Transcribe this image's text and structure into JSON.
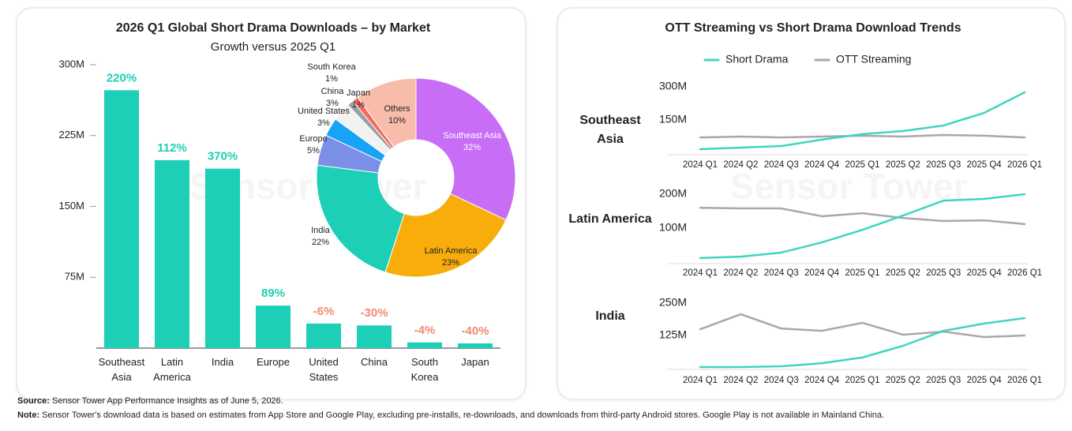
{
  "chart_data": [
    {
      "type": "bar",
      "title": "2026 Q1 Global Short Drama Downloads – by Market",
      "subtitle": "Growth versus 2025 Q1",
      "categories": [
        "Southeast Asia",
        "Latin America",
        "India",
        "Europe",
        "United States",
        "China",
        "South Korea",
        "Japan"
      ],
      "values": [
        273,
        199,
        190,
        45,
        26,
        24,
        6,
        5
      ],
      "growth": [
        220,
        112,
        370,
        89,
        -6,
        -30,
        -4,
        -40
      ],
      "growth_labels": [
        "220%",
        "112%",
        "370%",
        "89%",
        "-6%",
        "-30%",
        "-4%",
        "-40%"
      ],
      "color": "#1dcfb6",
      "positive_color": "#1dcfb6",
      "negative_color": "#f08a73",
      "ylim": [
        0,
        300
      ],
      "yticks": [
        {
          "value": 75,
          "label": "75M"
        },
        {
          "value": 150,
          "label": "150M"
        },
        {
          "value": 225,
          "label": "225M"
        },
        {
          "value": 300,
          "label": "300M"
        }
      ]
    },
    {
      "type": "pie",
      "donut": true,
      "categories": [
        "Southeast Asia",
        "Latin America",
        "India",
        "Europe",
        "United States",
        "China",
        "South Korea",
        "Japan",
        "Others"
      ],
      "values": [
        32,
        23,
        22,
        5,
        3,
        3,
        1,
        1,
        10
      ],
      "value_labels": [
        "32%",
        "23%",
        "22%",
        "5%",
        "3%",
        "3%",
        "1%",
        "1%",
        "10%"
      ],
      "colors": [
        "#c86ef6",
        "#f9ad0b",
        "#1dcfb6",
        "#7b8ee8",
        "#18a3f4",
        "#f2f2f2",
        "#9aa0a6",
        "#f46b5b",
        "#f8bcab"
      ]
    },
    {
      "type": "line",
      "panel_title": "OTT Streaming vs Short Drama Download Trends",
      "legend": "top",
      "title": "Southeast Asia",
      "categories": [
        "2024 Q1",
        "2024 Q2",
        "2024 Q3",
        "2024 Q4",
        "2025 Q1",
        "2025 Q2",
        "2025 Q3",
        "2025 Q4",
        "2026 Q1"
      ],
      "series": [
        {
          "name": "Short Drama",
          "color": "#3dd6bf",
          "values": [
            18,
            25,
            32,
            61,
            86,
            100,
            125,
            182,
            275
          ]
        },
        {
          "name": "OTT Streaming",
          "color": "#a8a8a8",
          "values": [
            71,
            75,
            71,
            75,
            79,
            75,
            82,
            79,
            71
          ]
        }
      ],
      "ylim": [
        0,
        300
      ],
      "yticks": [
        {
          "value": 150,
          "label": "150M"
        },
        {
          "value": 300,
          "label": "300M"
        }
      ]
    },
    {
      "type": "line",
      "title": "Latin America",
      "categories": [
        "2024 Q1",
        "2024 Q2",
        "2024 Q3",
        "2024 Q4",
        "2025 Q1",
        "2025 Q2",
        "2025 Q3",
        "2025 Q4",
        "2026 Q1"
      ],
      "series": [
        {
          "name": "Short Drama",
          "color": "#3dd6bf",
          "values": [
            12,
            16,
            28,
            58,
            95,
            137,
            181,
            186,
            200
          ]
        },
        {
          "name": "OTT Streaming",
          "color": "#a8a8a8",
          "values": [
            160,
            158,
            158,
            135,
            144,
            130,
            121,
            123,
            112
          ]
        }
      ],
      "ylim": [
        0,
        200
      ],
      "yticks": [
        {
          "value": 100,
          "label": "100M"
        },
        {
          "value": 200,
          "label": "200M"
        }
      ]
    },
    {
      "type": "line",
      "title": "India",
      "categories": [
        "2024 Q1",
        "2024 Q2",
        "2024 Q3",
        "2024 Q4",
        "2025 Q1",
        "2025 Q2",
        "2025 Q3",
        "2025 Q4",
        "2026 Q1"
      ],
      "series": [
        {
          "name": "Short Drama",
          "color": "#3dd6bf",
          "values": [
            3,
            3,
            6,
            18,
            40,
            85,
            143,
            171,
            192
          ]
        },
        {
          "name": "OTT Streaming",
          "color": "#a8a8a8",
          "values": [
            149,
            207,
            152,
            143,
            174,
            128,
            140,
            119,
            125
          ]
        }
      ],
      "ylim": [
        0,
        250
      ],
      "yticks": [
        {
          "value": 125,
          "label": "125M"
        },
        {
          "value": 250,
          "label": "250M"
        }
      ]
    }
  ],
  "watermark": "Sensor Tower",
  "footer": {
    "source_label": "Source:",
    "source": "Sensor Tower App Performance Insights as of June 5, 2026.",
    "note_label": "Note:",
    "note": "Sensor Tower's download data is based on estimates from App Store and Google Play, excluding pre-installs, re-downloads, and downloads from third-party Android stores. Google Play is not available in Mainland China."
  }
}
